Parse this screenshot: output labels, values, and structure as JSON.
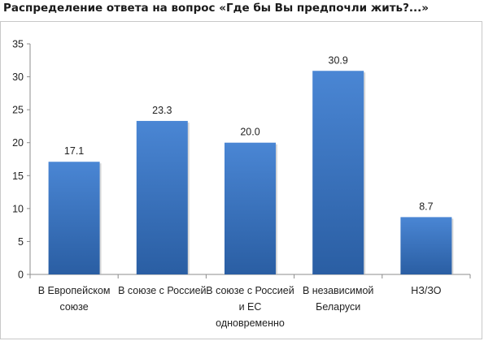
{
  "chart_data": {
    "type": "bar",
    "title": "Распределение ответа на вопрос «Где  бы Вы предпочли жить?...»",
    "categories": [
      [
        "В Европейском",
        "союзе"
      ],
      [
        "В союзе с Россией"
      ],
      [
        "В союзе с Россией",
        "и ЕС",
        "одновременно"
      ],
      [
        "В независимой",
        "Беларуси"
      ],
      [
        "НЗ/ЗО"
      ]
    ],
    "values": [
      17.1,
      23.3,
      20.0,
      30.9,
      8.7
    ],
    "value_labels": [
      "17.1",
      "23.3",
      "20.0",
      "30.9",
      "8.7"
    ],
    "ylim": [
      0,
      35
    ],
    "yticks": [
      "0",
      "5",
      "10",
      "15",
      "20",
      "25",
      "30",
      "35"
    ],
    "xlabel": "",
    "ylabel": "",
    "grid": false,
    "legend": "none",
    "bar_color_top": "#4a86d4",
    "bar_color_bottom": "#2a5ea3"
  }
}
